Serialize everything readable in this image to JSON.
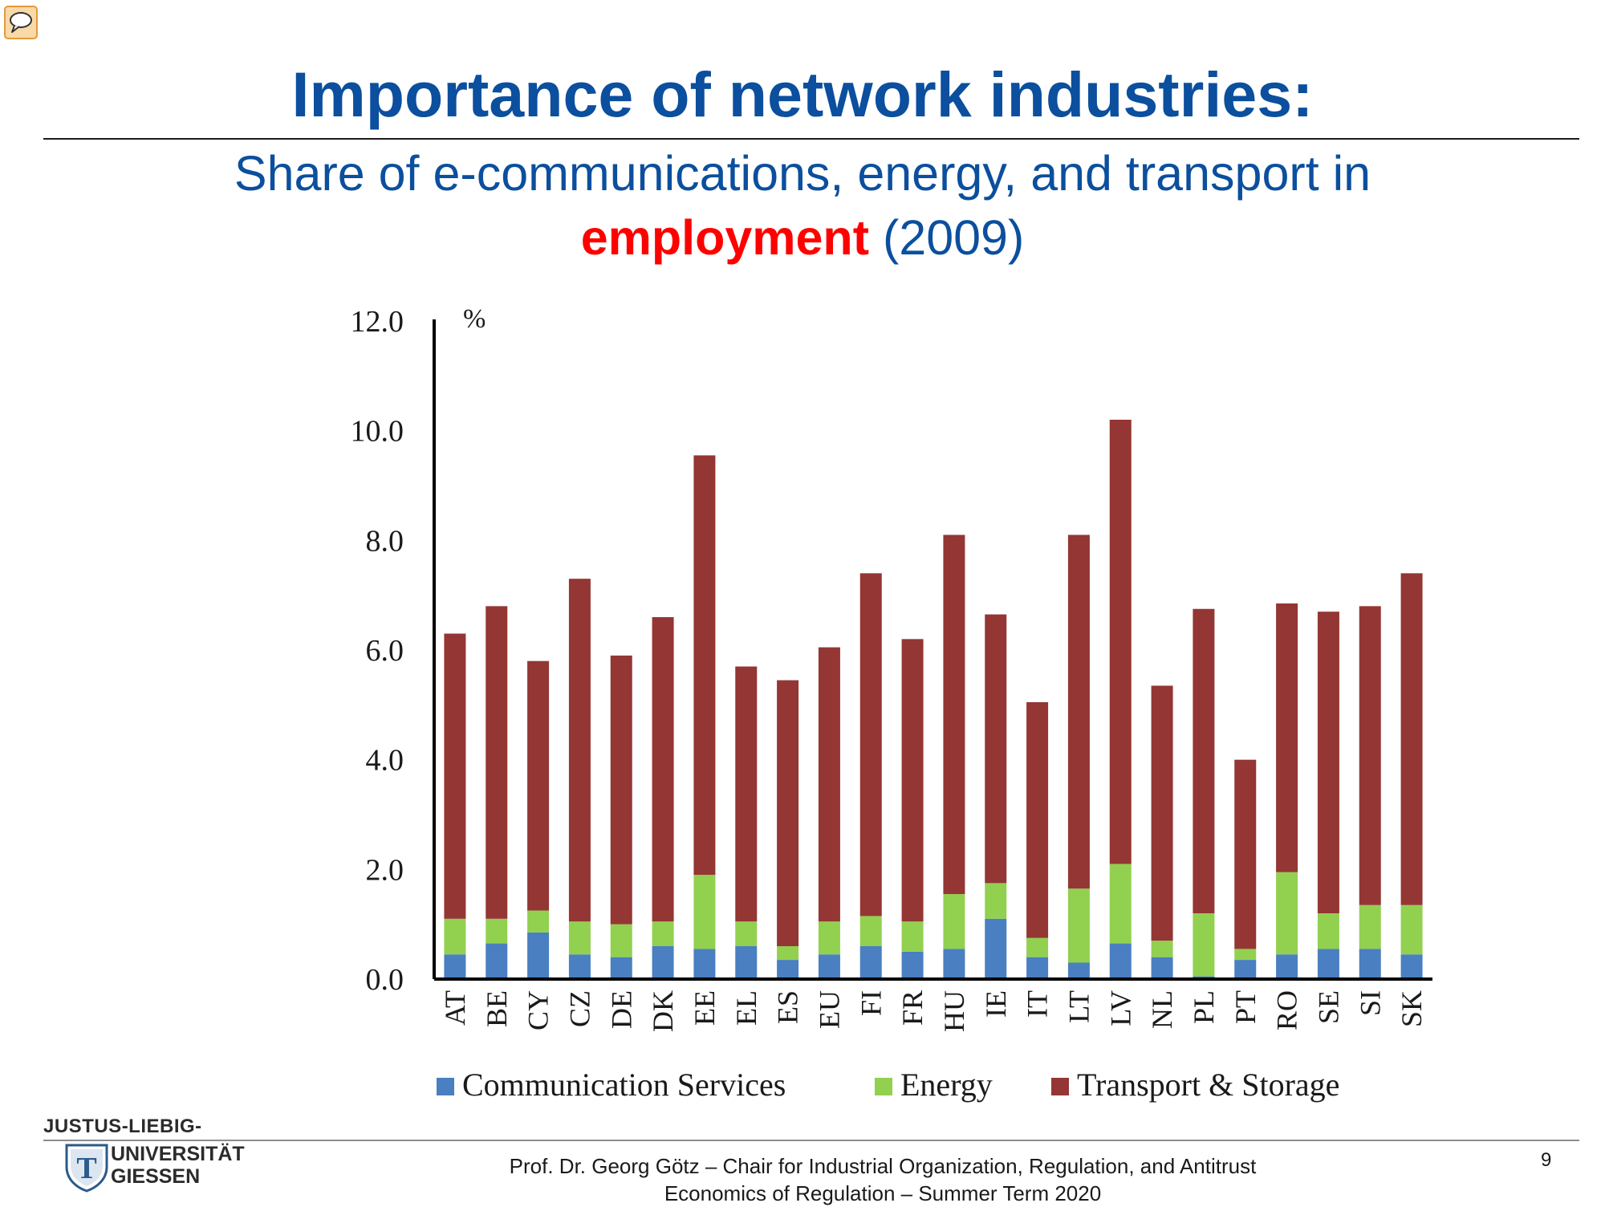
{
  "slide": {
    "title": "Importance of network industries:",
    "subtitle_line1": "Share of e-communications, energy, and transport in",
    "subtitle_highlight": "employment",
    "subtitle_rest": " (2009)"
  },
  "footer": {
    "line1": "Prof. Dr. Georg Götz – Chair for Industrial Organization, Regulation, and Antitrust",
    "line2": "Economics of Regulation – Summer Term  2020",
    "page_number": "9"
  },
  "logo": {
    "line1": "JUSTUS-LIEBIG-",
    "line2": "UNIVERSITÄT",
    "line3": "GIESSEN",
    "shield_letter": "T"
  },
  "icons": {
    "comment": "speech-bubble-icon"
  },
  "colors": {
    "title_blue": "#0b4f9e",
    "highlight_red": "#ff0000",
    "communication": "#4a7fc1",
    "energy": "#92d050",
    "transport": "#943634"
  },
  "chart_data": {
    "type": "bar",
    "stacked": true,
    "unit_label": "%",
    "categories": [
      "AT",
      "BE",
      "CY",
      "CZ",
      "DE",
      "DK",
      "EE",
      "EL",
      "ES",
      "EU",
      "FI",
      "FR",
      "HU",
      "IE",
      "IT",
      "LT",
      "LV",
      "NL",
      "PL",
      "PT",
      "RO",
      "SE",
      "SI",
      "SK"
    ],
    "series": [
      {
        "name": "Communication Services",
        "values": [
          0.45,
          0.65,
          0.85,
          0.45,
          0.4,
          0.6,
          0.55,
          0.6,
          0.35,
          0.45,
          0.6,
          0.5,
          0.55,
          1.1,
          0.4,
          0.3,
          0.65,
          0.4,
          0.05,
          0.35,
          0.45,
          0.55,
          0.55,
          0.45
        ]
      },
      {
        "name": "Energy",
        "values": [
          0.65,
          0.45,
          0.4,
          0.6,
          0.6,
          0.45,
          1.35,
          0.45,
          0.25,
          0.6,
          0.55,
          0.55,
          1.0,
          0.65,
          0.35,
          1.35,
          1.45,
          0.3,
          1.15,
          0.2,
          1.5,
          0.65,
          0.8,
          0.9
        ]
      },
      {
        "name": "Transport & Storage",
        "values": [
          5.2,
          5.7,
          4.55,
          6.25,
          4.9,
          5.55,
          7.65,
          4.65,
          4.85,
          5.0,
          6.25,
          5.15,
          6.55,
          4.9,
          4.3,
          6.45,
          8.1,
          4.65,
          5.55,
          3.45,
          4.9,
          5.5,
          5.45,
          6.05
        ]
      }
    ],
    "yticks": [
      "0.0",
      "2.0",
      "4.0",
      "6.0",
      "8.0",
      "10.0",
      "12.0"
    ],
    "ylim": [
      0,
      12
    ],
    "grid": false,
    "legend_position": "bottom"
  }
}
